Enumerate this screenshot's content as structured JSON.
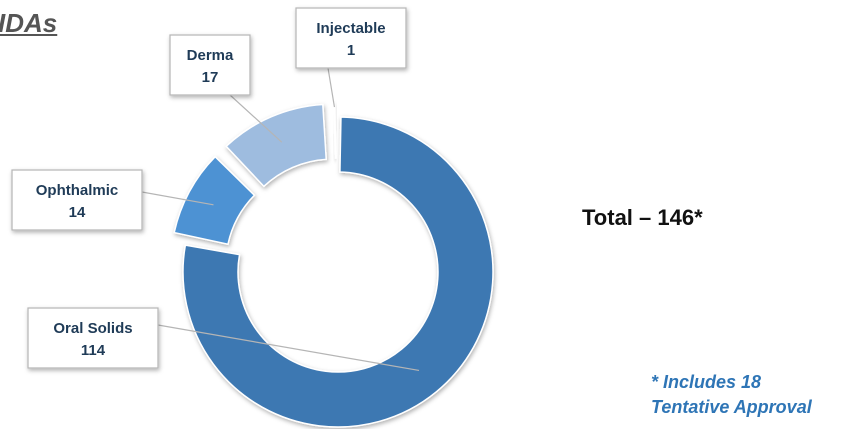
{
  "title": "IDAs",
  "total_text": "Total – 146*",
  "footnote": [
    "* Includes 18",
    "Tentative Approval"
  ],
  "colors": {
    "oral_solids": "#3d78b2",
    "ophthalmic": "#4e92d3",
    "derma": "#9ebcdf",
    "injectable": "#b9cfe8",
    "callout_border": "#b5b5b5",
    "label_text": "#1f3b57",
    "footnote": "#2e75b6"
  },
  "chart_data": {
    "type": "pie",
    "variant": "donut",
    "categories": [
      "Oral Solids",
      "Ophthalmic",
      "Derma",
      "Injectable"
    ],
    "values": [
      114,
      14,
      17,
      1
    ],
    "total": 146
  }
}
